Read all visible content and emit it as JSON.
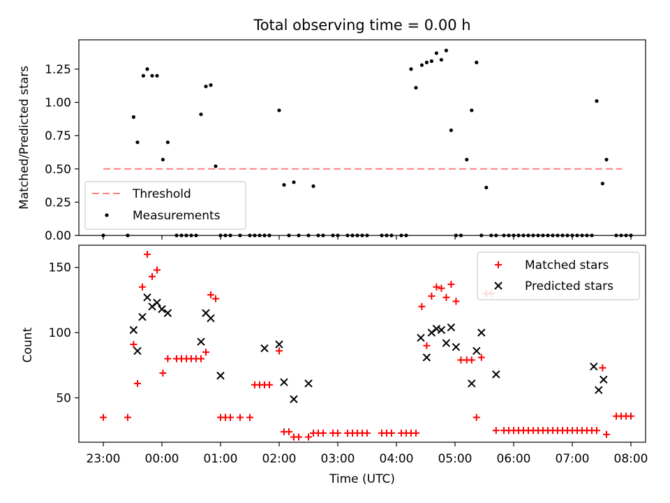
{
  "chart_data": [
    {
      "type": "scatter",
      "title": "Total observing time = 0.00 h",
      "xlabel": "",
      "ylabel": "Matched/Predicted stars",
      "ylim": [
        0,
        1.47
      ],
      "xlim_hours": [
        -0.42,
        9.2
      ],
      "yticks": [
        0.0,
        0.25,
        0.5,
        0.75,
        1.0,
        1.25
      ],
      "ytick_labels": [
        "0.00",
        "0.25",
        "0.50",
        "0.75",
        "1.00",
        "1.25"
      ],
      "legend_position": "lower-left",
      "threshold": {
        "name": "Threshold",
        "value": 0.5,
        "x_start": "23:00",
        "x_end": "07:51",
        "color": "#ff7f7f",
        "style": "dashed"
      },
      "series": [
        {
          "name": "Measurements",
          "marker": "dot",
          "color": "#000000",
          "x": [
            "23:00",
            "23:25",
            "23:31",
            "23:35",
            "23:41",
            "23:45",
            "23:50",
            "23:55",
            "00:01",
            "00:06",
            "00:15",
            "00:20",
            "00:25",
            "00:30",
            "00:35",
            "00:40",
            "00:45",
            "00:50",
            "00:55",
            "01:00",
            "01:05",
            "01:10",
            "01:20",
            "01:30",
            "01:35",
            "01:40",
            "01:45",
            "01:50",
            "02:00",
            "02:05",
            "02:10",
            "02:15",
            "02:20",
            "02:30",
            "02:35",
            "02:40",
            "02:45",
            "02:55",
            "03:00",
            "03:10",
            "03:15",
            "03:20",
            "03:25",
            "03:30",
            "03:45",
            "03:50",
            "03:55",
            "04:05",
            "04:10",
            "04:15",
            "04:20",
            "04:26",
            "04:31",
            "04:36",
            "04:41",
            "04:46",
            "04:51",
            "04:56",
            "05:01",
            "05:06",
            "05:12",
            "05:17",
            "05:22",
            "05:27",
            "05:32",
            "05:37",
            "05:42",
            "05:50",
            "05:55",
            "06:00",
            "06:05",
            "06:10",
            "06:15",
            "06:20",
            "06:25",
            "06:30",
            "06:35",
            "06:40",
            "06:45",
            "06:50",
            "06:55",
            "07:00",
            "07:05",
            "07:10",
            "07:15",
            "07:20",
            "07:25",
            "07:31",
            "07:35",
            "07:45",
            "07:50",
            "07:55",
            "08:00"
          ],
          "y": [
            0,
            0,
            0.89,
            0.7,
            1.2,
            1.25,
            1.2,
            1.2,
            0.57,
            0.7,
            0,
            0,
            0,
            0,
            0,
            0.91,
            1.12,
            1.13,
            0.52,
            0,
            0,
            0,
            0,
            0,
            0,
            0,
            0,
            0,
            0.94,
            0.38,
            0,
            0.4,
            0,
            0,
            0.37,
            0,
            0,
            0,
            0,
            0,
            0,
            0,
            0,
            0,
            0,
            0,
            0,
            0,
            0,
            1.25,
            1.11,
            1.28,
            1.3,
            1.31,
            1.37,
            1.32,
            1.39,
            0.79,
            0,
            0,
            0.57,
            0.94,
            1.3,
            0,
            0.36,
            0,
            0,
            0,
            0,
            0,
            0,
            0,
            0,
            0,
            0,
            0,
            0,
            0,
            0,
            0,
            0,
            0,
            0,
            0,
            0,
            0,
            1.01,
            0.39,
            0.57,
            0,
            0,
            0,
            0
          ]
        }
      ]
    },
    {
      "type": "scatter",
      "title": "",
      "xlabel": "Time (UTC)",
      "ylabel": "Count",
      "ylim": [
        16,
        167
      ],
      "xlim_hours": [
        -0.42,
        9.2
      ],
      "yticks": [
        50,
        100,
        150
      ],
      "ytick_labels": [
        "50",
        "100",
        "150"
      ],
      "xticks": [
        "23:00",
        "00:00",
        "01:00",
        "02:00",
        "03:00",
        "04:00",
        "05:00",
        "06:00",
        "07:00",
        "08:00"
      ],
      "legend_position": "upper-right",
      "series": [
        {
          "name": "Matched stars",
          "marker": "plus",
          "color": "#ff0000",
          "x": [
            "23:00",
            "23:25",
            "23:31",
            "23:35",
            "23:40",
            "23:45",
            "23:50",
            "23:55",
            "00:01",
            "00:06",
            "00:15",
            "00:20",
            "00:25",
            "00:30",
            "00:35",
            "00:40",
            "00:45",
            "00:50",
            "00:55",
            "01:00",
            "01:05",
            "01:10",
            "01:20",
            "01:30",
            "01:35",
            "01:40",
            "01:45",
            "01:50",
            "02:00",
            "02:05",
            "02:10",
            "02:15",
            "02:20",
            "02:30",
            "02:35",
            "02:40",
            "02:45",
            "02:55",
            "03:00",
            "03:10",
            "03:15",
            "03:20",
            "03:25",
            "03:30",
            "03:45",
            "03:50",
            "03:55",
            "04:05",
            "04:10",
            "04:15",
            "04:20",
            "04:26",
            "04:31",
            "04:36",
            "04:41",
            "04:46",
            "04:51",
            "04:56",
            "05:01",
            "05:06",
            "05:12",
            "05:17",
            "05:22",
            "05:27",
            "05:32",
            "05:37",
            "05:42",
            "05:50",
            "05:55",
            "06:00",
            "06:05",
            "06:10",
            "06:15",
            "06:20",
            "06:25",
            "06:30",
            "06:35",
            "06:40",
            "06:45",
            "06:50",
            "06:55",
            "07:00",
            "07:05",
            "07:10",
            "07:15",
            "07:20",
            "07:25",
            "07:31",
            "07:35",
            "07:45",
            "07:50",
            "07:55",
            "08:00"
          ],
          "y": [
            35,
            35,
            91,
            61,
            135,
            160,
            143,
            148,
            69,
            80,
            80,
            80,
            80,
            80,
            80,
            80,
            85,
            129,
            126,
            35,
            35,
            35,
            35,
            35,
            60,
            60,
            60,
            60,
            86,
            24,
            24,
            20,
            20,
            20,
            23,
            23,
            23,
            23,
            23,
            23,
            23,
            23,
            23,
            23,
            23,
            23,
            23,
            23,
            23,
            23,
            23,
            120,
            90,
            128,
            135,
            134,
            127,
            137,
            124,
            79,
            79,
            79,
            35,
            81,
            130,
            130,
            25,
            25,
            25,
            25,
            25,
            25,
            25,
            25,
            25,
            25,
            25,
            25,
            25,
            25,
            25,
            25,
            25,
            25,
            25,
            25,
            25,
            73,
            22,
            36,
            36,
            36,
            36
          ]
        },
        {
          "name": "Predicted stars",
          "marker": "x",
          "color": "#000000",
          "x": [
            "23:31",
            "23:35",
            "23:40",
            "23:45",
            "23:50",
            "23:55",
            "00:00",
            "00:06",
            "00:40",
            "00:45",
            "00:50",
            "01:00",
            "01:45",
            "02:00",
            "02:05",
            "02:15",
            "02:30",
            "04:25",
            "04:31",
            "04:36",
            "04:41",
            "04:46",
            "04:51",
            "04:56",
            "05:01",
            "05:17",
            "05:22",
            "05:27",
            "05:42",
            "07:22",
            "07:27",
            "07:32"
          ],
          "y": [
            102,
            86,
            112,
            127,
            120,
            123,
            118,
            115,
            93,
            115,
            111,
            67,
            88,
            91,
            62,
            49,
            61,
            96,
            81,
            100,
            103,
            102,
            92,
            104,
            89,
            61,
            86,
            100,
            68,
            74,
            56,
            64
          ]
        }
      ]
    }
  ]
}
